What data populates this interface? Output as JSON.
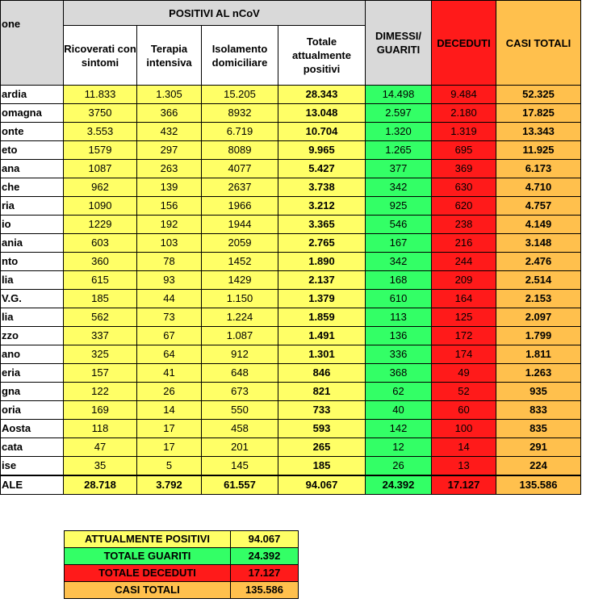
{
  "header": {
    "region_label": "one",
    "group_label": "POSITIVI AL nCoV",
    "col_ricoverati": "Ricoverati con sintomi",
    "col_terapia": "Terapia intensiva",
    "col_isolamento": "Isolamento domiciliare",
    "col_totale_positivi": "Totale attualmente positivi",
    "col_dimessi": "DIMESSI/ GUARITI",
    "col_deceduti": "DECEDUTI",
    "col_casi": "CASI TOTALI"
  },
  "rows": [
    {
      "region": "ardia",
      "ricoverati": "11.833",
      "terapia": "1.305",
      "isolamento": "15.205",
      "totale": "28.343",
      "dimessi": "14.498",
      "deceduti": "9.484",
      "casi": "52.325"
    },
    {
      "region": "omagna",
      "ricoverati": "3750",
      "terapia": "366",
      "isolamento": "8932",
      "totale": "13.048",
      "dimessi": "2.597",
      "deceduti": "2.180",
      "casi": "17.825"
    },
    {
      "region": "onte",
      "ricoverati": "3.553",
      "terapia": "432",
      "isolamento": "6.719",
      "totale": "10.704",
      "dimessi": "1.320",
      "deceduti": "1.319",
      "casi": "13.343"
    },
    {
      "region": "eto",
      "ricoverati": "1579",
      "terapia": "297",
      "isolamento": "8089",
      "totale": "9.965",
      "dimessi": "1.265",
      "deceduti": "695",
      "casi": "11.925"
    },
    {
      "region": "ana",
      "ricoverati": "1087",
      "terapia": "263",
      "isolamento": "4077",
      "totale": "5.427",
      "dimessi": "377",
      "deceduti": "369",
      "casi": "6.173"
    },
    {
      "region": "che",
      "ricoverati": "962",
      "terapia": "139",
      "isolamento": "2637",
      "totale": "3.738",
      "dimessi": "342",
      "deceduti": "630",
      "casi": "4.710"
    },
    {
      "region": "ria",
      "ricoverati": "1090",
      "terapia": "156",
      "isolamento": "1966",
      "totale": "3.212",
      "dimessi": "925",
      "deceduti": "620",
      "casi": "4.757"
    },
    {
      "region": "io",
      "ricoverati": "1229",
      "terapia": "192",
      "isolamento": "1944",
      "totale": "3.365",
      "dimessi": "546",
      "deceduti": "238",
      "casi": "4.149"
    },
    {
      "region": "ania",
      "ricoverati": "603",
      "terapia": "103",
      "isolamento": "2059",
      "totale": "2.765",
      "dimessi": "167",
      "deceduti": "216",
      "casi": "3.148"
    },
    {
      "region": "nto",
      "ricoverati": "360",
      "terapia": "78",
      "isolamento": "1452",
      "totale": "1.890",
      "dimessi": "342",
      "deceduti": "244",
      "casi": "2.476"
    },
    {
      "region": "lia",
      "ricoverati": "615",
      "terapia": "93",
      "isolamento": "1429",
      "totale": "2.137",
      "dimessi": "168",
      "deceduti": "209",
      "casi": "2.514"
    },
    {
      "region": "V.G.",
      "ricoverati": "185",
      "terapia": "44",
      "isolamento": "1.150",
      "totale": "1.379",
      "dimessi": "610",
      "deceduti": "164",
      "casi": "2.153"
    },
    {
      "region": "lia",
      "ricoverati": "562",
      "terapia": "73",
      "isolamento": "1.224",
      "totale": "1.859",
      "dimessi": "113",
      "deceduti": "125",
      "casi": "2.097"
    },
    {
      "region": "zzo",
      "ricoverati": "337",
      "terapia": "67",
      "isolamento": "1.087",
      "totale": "1.491",
      "dimessi": "136",
      "deceduti": "172",
      "casi": "1.799"
    },
    {
      "region": "ano",
      "ricoverati": "325",
      "terapia": "64",
      "isolamento": "912",
      "totale": "1.301",
      "dimessi": "336",
      "deceduti": "174",
      "casi": "1.811"
    },
    {
      "region": "eria",
      "ricoverati": "157",
      "terapia": "41",
      "isolamento": "648",
      "totale": "846",
      "dimessi": "368",
      "deceduti": "49",
      "casi": "1.263"
    },
    {
      "region": "gna",
      "ricoverati": "122",
      "terapia": "26",
      "isolamento": "673",
      "totale": "821",
      "dimessi": "62",
      "deceduti": "52",
      "casi": "935"
    },
    {
      "region": "oria",
      "ricoverati": "169",
      "terapia": "14",
      "isolamento": "550",
      "totale": "733",
      "dimessi": "40",
      "deceduti": "60",
      "casi": "833"
    },
    {
      "region": "Aosta",
      "ricoverati": "118",
      "terapia": "17",
      "isolamento": "458",
      "totale": "593",
      "dimessi": "142",
      "deceduti": "100",
      "casi": "835"
    },
    {
      "region": "cata",
      "ricoverati": "47",
      "terapia": "17",
      "isolamento": "201",
      "totale": "265",
      "dimessi": "12",
      "deceduti": "14",
      "casi": "291"
    },
    {
      "region": "ise",
      "ricoverati": "35",
      "terapia": "5",
      "isolamento": "145",
      "totale": "185",
      "dimessi": "26",
      "deceduti": "13",
      "casi": "224"
    }
  ],
  "totals": {
    "region": "ALE",
    "ricoverati": "28.718",
    "terapia": "3.792",
    "isolamento": "61.557",
    "totale": "94.067",
    "dimessi": "24.392",
    "deceduti": "17.127",
    "casi": "135.586"
  },
  "summary": [
    {
      "label": "ATTUALMENTE POSITIVI",
      "value": "94.067",
      "color": "#ffff66"
    },
    {
      "label": "TOTALE GUARITI",
      "value": "24.392",
      "color": "#33ff66"
    },
    {
      "label": "TOTALE DECEDUTI",
      "value": "17.127",
      "color": "#ff1a1a"
    },
    {
      "label": "CASI TOTALI",
      "value": "135.586",
      "color": "#ffc04d"
    }
  ],
  "colors": {
    "header_gray": "#d9d9d9",
    "yellow": "#ffff66",
    "green": "#33ff66",
    "red": "#ff1a1a",
    "orange": "#ffc04d"
  }
}
